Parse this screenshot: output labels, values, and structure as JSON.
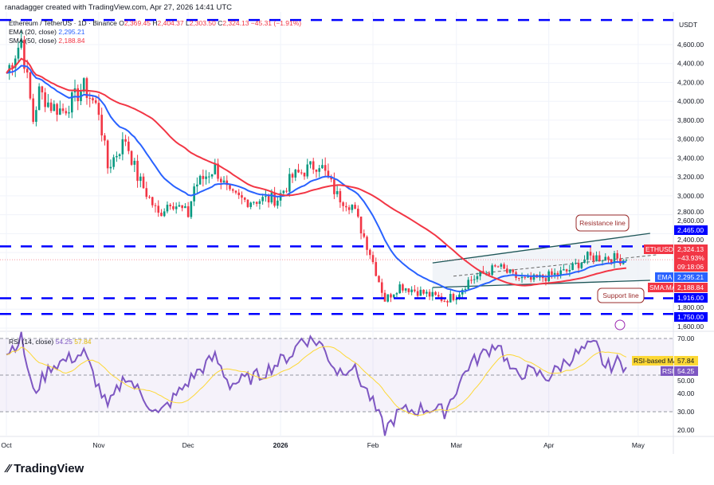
{
  "header": {
    "credit": "ranadagger created with TradingView.com, Apr 27, 2026 14:41 UTC",
    "symbol": "Ethereum / TetherUS · 1D · Binance",
    "o_label": "O",
    "o": "2,369.45",
    "h_label": "H",
    "h": "2,404.37",
    "l_label": "L",
    "l": "2,303.50",
    "c_label": "C",
    "c": "2,324.13",
    "change": "−45.31 (−1.91%)",
    "ema_label": "EMA (20, close)",
    "ema_value": "2,295.21",
    "sma_label": "SMA (50, close)",
    "sma_value": "2,188.84",
    "rsi_label": "RSI (14, close)",
    "rsi_value": "54.25",
    "rsi_ma_value": "57.84"
  },
  "logo": "TradingView",
  "colors": {
    "up": "#089981",
    "down": "#f23645",
    "ema": "#2962ff",
    "sma": "#f23645",
    "rsi": "#7e57c2",
    "rsi_ma": "#fdd835",
    "level": "#0000ff"
  },
  "chart_data": [
    {
      "type": "candlestick",
      "currency": "USDT",
      "axis_unit": "USDT",
      "x_ticks": [
        "Oct",
        "Nov",
        "Dec",
        "2026",
        "Feb",
        "Mar",
        "Apr",
        "May"
      ],
      "y_ticks": [
        "4,600.00",
        "4,400.00",
        "4,200.00",
        "4,000.00",
        "3,800.00",
        "3,600.00",
        "3,400.00",
        "3,200.00",
        "3,000.00",
        "2,800.00",
        "2,600.00",
        "2,400.00",
        "1,800.00",
        "1,600.00"
      ],
      "ylim": [
        1600,
        4900
      ],
      "close": [
        [
          "2025-10-01",
          4300
        ],
        [
          "2025-10-06",
          4650
        ],
        [
          "2025-10-10",
          3800
        ],
        [
          "2025-10-12",
          4100
        ],
        [
          "2025-10-16",
          3950
        ],
        [
          "2025-10-20",
          3900
        ],
        [
          "2025-10-27",
          4150
        ],
        [
          "2025-11-01",
          3900
        ],
        [
          "2025-11-04",
          3300
        ],
        [
          "2025-11-10",
          3600
        ],
        [
          "2025-11-14",
          3200
        ],
        [
          "2025-11-21",
          2800
        ],
        [
          "2025-11-25",
          2950
        ],
        [
          "2025-12-01",
          2800
        ],
        [
          "2025-12-03",
          3100
        ],
        [
          "2025-12-10",
          3300
        ],
        [
          "2025-12-15",
          3000
        ],
        [
          "2025-12-20",
          2950
        ],
        [
          "2025-12-31",
          2970
        ],
        [
          "2026-01-05",
          3200
        ],
        [
          "2026-01-14",
          3350
        ],
        [
          "2026-01-20",
          3000
        ],
        [
          "2026-01-25",
          2900
        ],
        [
          "2026-01-31",
          2400
        ],
        [
          "2026-02-05",
          1900
        ],
        [
          "2026-02-10",
          2050
        ],
        [
          "2026-02-15",
          2000
        ],
        [
          "2026-02-20",
          1950
        ],
        [
          "2026-02-25",
          1900
        ],
        [
          "2026-03-01",
          1950
        ],
        [
          "2026-03-05",
          2100
        ],
        [
          "2026-03-15",
          2250
        ],
        [
          "2026-03-20",
          2150
        ],
        [
          "2026-03-25",
          2100
        ],
        [
          "2026-04-01",
          2150
        ],
        [
          "2026-04-07",
          2200
        ],
        [
          "2026-04-14",
          2350
        ],
        [
          "2026-04-20",
          2350
        ],
        [
          "2026-04-27",
          2324.13
        ]
      ],
      "levels": [
        {
          "value": 4860
        },
        {
          "value": 2465,
          "label": "2,465.00"
        },
        {
          "value": 1916,
          "label": "1,916.00"
        },
        {
          "value": 1750,
          "label": "1,750.00"
        }
      ],
      "channel": {
        "upper": [
          [
            "2026-02-21",
            2290
          ],
          [
            "2026-05-05",
            2603
          ]
        ],
        "lower": [
          [
            "2026-02-21",
            2030
          ],
          [
            "2026-05-05",
            2106
          ]
        ]
      },
      "annotations": [
        "Resistance line",
        "Support line"
      ],
      "price_tags": {
        "symbol": "ETHUSDT",
        "price": "2,324.13",
        "change": "−43.93%",
        "countdown": "09:18:06",
        "ema_tag": "EMA",
        "ema": "2,295.21",
        "sma_tag": "SMA:MA",
        "sma": "2,188.84"
      }
    },
    {
      "type": "line",
      "title": "RSI (14, close)",
      "ylim": [
        15,
        75
      ],
      "y_ticks": [
        "70.00",
        "50.00",
        "40.00",
        "30.00",
        "20.00"
      ],
      "bands": [
        30,
        70
      ],
      "rsi": [
        [
          "2025-10-01",
          62
        ],
        [
          "2025-10-06",
          70
        ],
        [
          "2025-10-10",
          40
        ],
        [
          "2025-10-16",
          55
        ],
        [
          "2025-10-27",
          62
        ],
        [
          "2025-11-04",
          32
        ],
        [
          "2025-11-10",
          50
        ],
        [
          "2025-11-21",
          28
        ],
        [
          "2025-12-03",
          50
        ],
        [
          "2025-12-10",
          60
        ],
        [
          "2025-12-15",
          45
        ],
        [
          "2025-12-25",
          50
        ],
        [
          "2026-01-05",
          62
        ],
        [
          "2026-01-08",
          70
        ],
        [
          "2026-01-14",
          68
        ],
        [
          "2026-01-20",
          52
        ],
        [
          "2026-01-25",
          55
        ],
        [
          "2026-01-31",
          38
        ],
        [
          "2026-02-05",
          20
        ],
        [
          "2026-02-10",
          30
        ],
        [
          "2026-02-20",
          32
        ],
        [
          "2026-02-25",
          30
        ],
        [
          "2026-03-05",
          55
        ],
        [
          "2026-03-15",
          68
        ],
        [
          "2026-03-20",
          50
        ],
        [
          "2026-03-25",
          52
        ],
        [
          "2026-04-01",
          49
        ],
        [
          "2026-04-07",
          58
        ],
        [
          "2026-04-14",
          65
        ],
        [
          "2026-04-17",
          66
        ],
        [
          "2026-04-20",
          54
        ],
        [
          "2026-04-24",
          57
        ],
        [
          "2026-04-27",
          54.25
        ]
      ],
      "tags": {
        "ma_label": "RSI-based MA",
        "ma": "57.84",
        "rsi_tag": "RSI",
        "rsi": "54.25"
      }
    }
  ]
}
